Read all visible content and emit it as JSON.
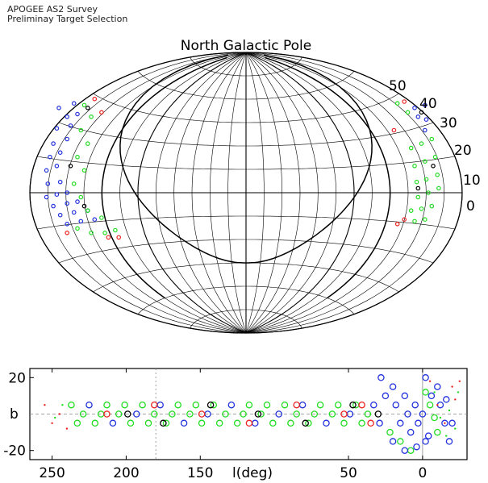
{
  "header": {
    "title": "APOGEE AS2 Survey",
    "subtitle": "Preliminay Target Selection"
  },
  "colors": {
    "blue": "#2233dd",
    "green": "#22dd22",
    "red": "#ee2222",
    "black": "#000000",
    "grid": "#000000"
  },
  "chart_data": [
    {
      "type": "scatter",
      "projection": "aitoff",
      "title": "North Galactic Pole",
      "lat_tick_labels": [
        "50",
        "40",
        "30",
        "20",
        "10",
        "0"
      ],
      "grid": true,
      "series": [
        {
          "color": "blue",
          "points": [
            [
              -2.72,
              0.95
            ],
            [
              -2.5,
              1.0
            ],
            [
              -2.6,
              0.85
            ],
            [
              -2.45,
              0.88
            ],
            [
              -2.75,
              0.72
            ],
            [
              -2.55,
              0.75
            ],
            [
              -2.8,
              0.55
            ],
            [
              -2.6,
              0.6
            ],
            [
              -2.85,
              0.4
            ],
            [
              -2.7,
              0.45
            ],
            [
              -2.9,
              0.25
            ],
            [
              -2.75,
              0.3
            ],
            [
              -2.88,
              0.1
            ],
            [
              -2.7,
              0.12
            ],
            [
              -2.9,
              -0.05
            ],
            [
              -2.75,
              -0.02
            ],
            [
              -2.6,
              0.0
            ],
            [
              -2.8,
              -0.15
            ],
            [
              -2.6,
              -0.12
            ],
            [
              -2.45,
              -0.1
            ],
            [
              -2.7,
              -0.25
            ],
            [
              -2.5,
              -0.22
            ],
            [
              -2.3,
              -0.2
            ],
            [
              -2.6,
              -0.35
            ],
            [
              -2.4,
              -0.32
            ],
            [
              -2.2,
              -0.3
            ],
            [
              2.6,
              0.98
            ],
            [
              2.45,
              0.95
            ],
            [
              2.5,
              0.85
            ],
            [
              2.62,
              0.82
            ],
            [
              2.6,
              0.7
            ]
          ]
        },
        {
          "color": "green",
          "points": [
            [
              -2.35,
              0.98
            ],
            [
              -2.25,
              0.85
            ],
            [
              -2.4,
              0.7
            ],
            [
              -2.3,
              0.55
            ],
            [
              -2.45,
              0.4
            ],
            [
              -2.35,
              0.25
            ],
            [
              -2.5,
              0.1
            ],
            [
              -2.4,
              -0.05
            ],
            [
              -2.3,
              -0.2
            ],
            [
              -2.1,
              -0.28
            ],
            [
              -2.45,
              -0.4
            ],
            [
              -2.25,
              -0.45
            ],
            [
              -2.05,
              -0.45
            ],
            [
              -1.9,
              -0.42
            ],
            [
              2.2,
              1.0
            ],
            [
              2.35,
              0.9
            ],
            [
              2.7,
              0.6
            ],
            [
              2.55,
              0.55
            ],
            [
              2.4,
              0.5
            ],
            [
              2.75,
              0.4
            ],
            [
              2.6,
              0.35
            ],
            [
              2.45,
              0.3
            ],
            [
              2.78,
              0.2
            ],
            [
              2.62,
              0.15
            ],
            [
              2.48,
              0.12
            ],
            [
              2.8,
              0.05
            ],
            [
              2.65,
              0.0
            ],
            [
              2.5,
              -0.05
            ],
            [
              2.7,
              -0.15
            ],
            [
              2.55,
              -0.18
            ],
            [
              2.4,
              -0.2
            ],
            [
              2.6,
              -0.3
            ],
            [
              2.45,
              -0.32
            ]
          ]
        },
        {
          "color": "red",
          "points": [
            [
              -2.2,
              1.05
            ],
            [
              -2.1,
              0.9
            ],
            [
              -2.6,
              -0.45
            ],
            [
              -2.0,
              -0.5
            ],
            [
              -1.85,
              -0.5
            ],
            [
              2.3,
              1.02
            ],
            [
              2.15,
              0.7
            ],
            [
              2.3,
              -0.3
            ],
            [
              2.2,
              -0.35
            ]
          ]
        },
        {
          "color": "black",
          "points": [
            [
              -2.3,
              0.95
            ],
            [
              -2.55,
              0.3
            ],
            [
              -2.35,
              -0.15
            ],
            [
              2.55,
              0.9
            ],
            [
              2.72,
              0.3
            ],
            [
              2.5,
              0.05
            ]
          ]
        }
      ]
    },
    {
      "type": "scatter",
      "title": "",
      "xlabel": "l(deg)",
      "ylabel": "b",
      "x_ticks": [
        250,
        200,
        150,
        50,
        0
      ],
      "y_ticks": [
        20,
        -20
      ],
      "y_tick_labels": [
        "20",
        "-20"
      ],
      "xlim": [
        265,
        -30
      ],
      "ylim": [
        -25,
        25
      ],
      "series": [
        {
          "color": "green",
          "marker": "circle-large",
          "points": [
            [
              237,
              5
            ],
            [
              229,
              0
            ],
            [
              221,
              -5
            ],
            [
              213,
              5
            ],
            [
              205,
              0
            ],
            [
              197,
              -5
            ],
            [
              189,
              5
            ],
            [
              181,
              0
            ],
            [
              173,
              -5
            ],
            [
              165,
              5
            ],
            [
              157,
              0
            ],
            [
              149,
              -5
            ],
            [
              141,
              5
            ],
            [
              133,
              0
            ],
            [
              125,
              -5
            ],
            [
              117,
              5
            ],
            [
              109,
              0
            ],
            [
              101,
              -5
            ],
            [
              93,
              5
            ],
            [
              85,
              0
            ],
            [
              77,
              -5
            ],
            [
              69,
              5
            ],
            [
              61,
              0
            ],
            [
              53,
              -5
            ],
            [
              45,
              5
            ],
            [
              37,
              0
            ],
            [
              233,
              -5
            ],
            [
              217,
              0
            ],
            [
              201,
              5
            ],
            [
              185,
              -5
            ],
            [
              169,
              0
            ],
            [
              153,
              5
            ],
            [
              137,
              -5
            ],
            [
              121,
              0
            ],
            [
              105,
              5
            ],
            [
              89,
              -5
            ],
            [
              73,
              0
            ],
            [
              57,
              5
            ],
            [
              41,
              -5
            ],
            [
              22,
              -10
            ],
            [
              15,
              -15
            ],
            [
              8,
              -20
            ],
            [
              -2,
              12
            ],
            [
              -5,
              5
            ],
            [
              -8,
              -2
            ],
            [
              -10,
              -10
            ]
          ]
        },
        {
          "color": "blue",
          "marker": "circle-large",
          "points": [
            [
              225,
              5
            ],
            [
              209,
              -5
            ],
            [
              193,
              0
            ],
            [
              177,
              5
            ],
            [
              161,
              -5
            ],
            [
              145,
              0
            ],
            [
              129,
              5
            ],
            [
              113,
              -5
            ],
            [
              97,
              0
            ],
            [
              81,
              5
            ],
            [
              65,
              -5
            ],
            [
              49,
              0
            ],
            [
              33,
              5
            ],
            [
              29,
              -5
            ],
            [
              25,
              10
            ],
            [
              20,
              15
            ],
            [
              18,
              5
            ],
            [
              15,
              -5
            ],
            [
              12,
              10
            ],
            [
              10,
              0
            ],
            [
              8,
              -10
            ],
            [
              5,
              5
            ],
            [
              3,
              -5
            ],
            [
              0,
              0
            ],
            [
              -2,
              -15
            ],
            [
              28,
              20
            ],
            [
              20,
              -15
            ],
            [
              12,
              -20
            ],
            [
              4,
              -18
            ],
            [
              -4,
              -12
            ],
            [
              -6,
              10
            ],
            [
              -12,
              5
            ],
            [
              -15,
              -5
            ],
            [
              -18,
              -15
            ],
            [
              -2,
              20
            ],
            [
              -10,
              15
            ],
            [
              -16,
              8
            ],
            [
              -20,
              -5
            ]
          ]
        },
        {
          "color": "red",
          "marker": "circle-large",
          "points": [
            [
              213,
              0
            ],
            [
              181,
              5
            ],
            [
              149,
              0
            ],
            [
              117,
              -5
            ],
            [
              85,
              5
            ],
            [
              53,
              0
            ],
            [
              41,
              5
            ],
            [
              35,
              -5
            ]
          ]
        },
        {
          "color": "black",
          "marker": "circle-large",
          "points": [
            [
              199,
              0
            ],
            [
              175,
              -5
            ],
            [
              143,
              5
            ],
            [
              111,
              0
            ],
            [
              79,
              -5
            ],
            [
              47,
              5
            ],
            [
              30,
              0
            ]
          ]
        },
        {
          "color": "red",
          "marker": "dot",
          "points": [
            [
              255,
              5
            ],
            [
              250,
              -5
            ],
            [
              245,
              0
            ],
            [
              240,
              -8
            ],
            [
              -5,
              18
            ],
            [
              -10,
              5
            ],
            [
              -15,
              -5
            ],
            [
              -20,
              15
            ],
            [
              -25,
              18
            ],
            [
              -22,
              8
            ]
          ]
        },
        {
          "color": "green",
          "marker": "dot",
          "points": [
            [
              248,
              -2
            ],
            [
              243,
              5
            ],
            [
              -8,
              12
            ],
            [
              -12,
              -2
            ],
            [
              -18,
              2
            ],
            [
              -24,
              12
            ],
            [
              -16,
              -12
            ],
            [
              -22,
              -8
            ]
          ]
        }
      ]
    }
  ]
}
